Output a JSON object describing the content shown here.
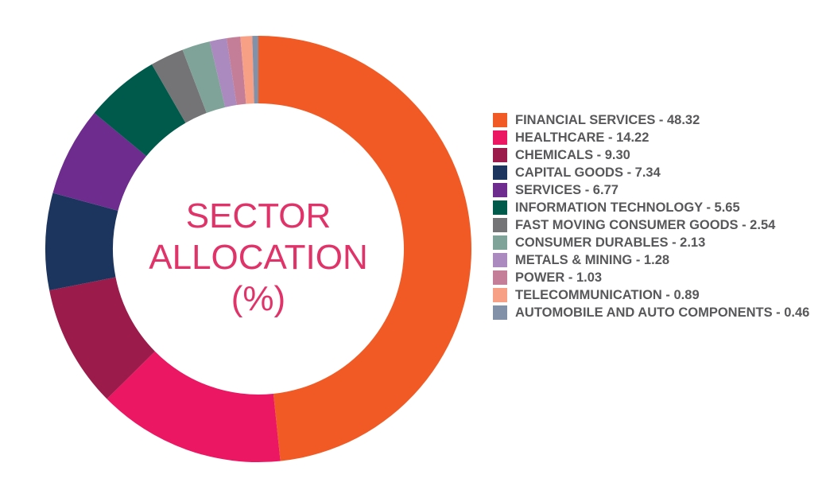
{
  "chart_data": {
    "type": "pie",
    "donut": true,
    "title": "SECTOR ALLOCATION (%)",
    "title_lines": [
      "SECTOR",
      "ALLOCATION",
      "(%)"
    ],
    "legend_position": "right",
    "slices": [
      {
        "label": "FINANCIAL SERVICES",
        "value": 48.32,
        "color": "#F15A24",
        "legend": "FINANCIAL SERVICES - 48.32"
      },
      {
        "label": "HEALTHCARE",
        "value": 14.22,
        "color": "#EC1763",
        "legend": "HEALTHCARE - 14.22"
      },
      {
        "label": "CHEMICALS",
        "value": 9.3,
        "color": "#9B1B4B",
        "legend": "CHEMICALS - 9.30"
      },
      {
        "label": "CAPITAL GOODS",
        "value": 7.34,
        "color": "#1C355E",
        "legend": "CAPITAL GOODS - 7.34"
      },
      {
        "label": "SERVICES",
        "value": 6.77,
        "color": "#6D2C8E",
        "legend": "SERVICES - 6.77"
      },
      {
        "label": "INFORMATION TECHNOLOGY",
        "value": 5.65,
        "color": "#005A4B",
        "legend": "INFORMATION TECHNOLOGY - 5.65"
      },
      {
        "label": "FAST MOVING CONSUMER GOODS",
        "value": 2.54,
        "color": "#747476",
        "legend": "FAST MOVING CONSUMER GOODS - 2.54"
      },
      {
        "label": "CONSUMER DURABLES",
        "value": 2.13,
        "color": "#7FA398",
        "legend": "CONSUMER DURABLES - 2.13"
      },
      {
        "label": "METALS & MINING",
        "value": 1.28,
        "color": "#AB8BBF",
        "legend": "METALS & MINING - 1.28"
      },
      {
        "label": "POWER",
        "value": 1.03,
        "color": "#C57E98",
        "legend": "POWER - 1.03"
      },
      {
        "label": "TELECOMMUNICATION",
        "value": 0.89,
        "color": "#F7A086",
        "legend": "TELECOMMUNICATION - 0.89"
      },
      {
        "label": "AUTOMOBILE AND AUTO COMPONENTS",
        "value": 0.46,
        "color": "#8391A8",
        "legend": "AUTOMOBILE AND AUTO COMPONENTS - 0.46"
      }
    ]
  }
}
